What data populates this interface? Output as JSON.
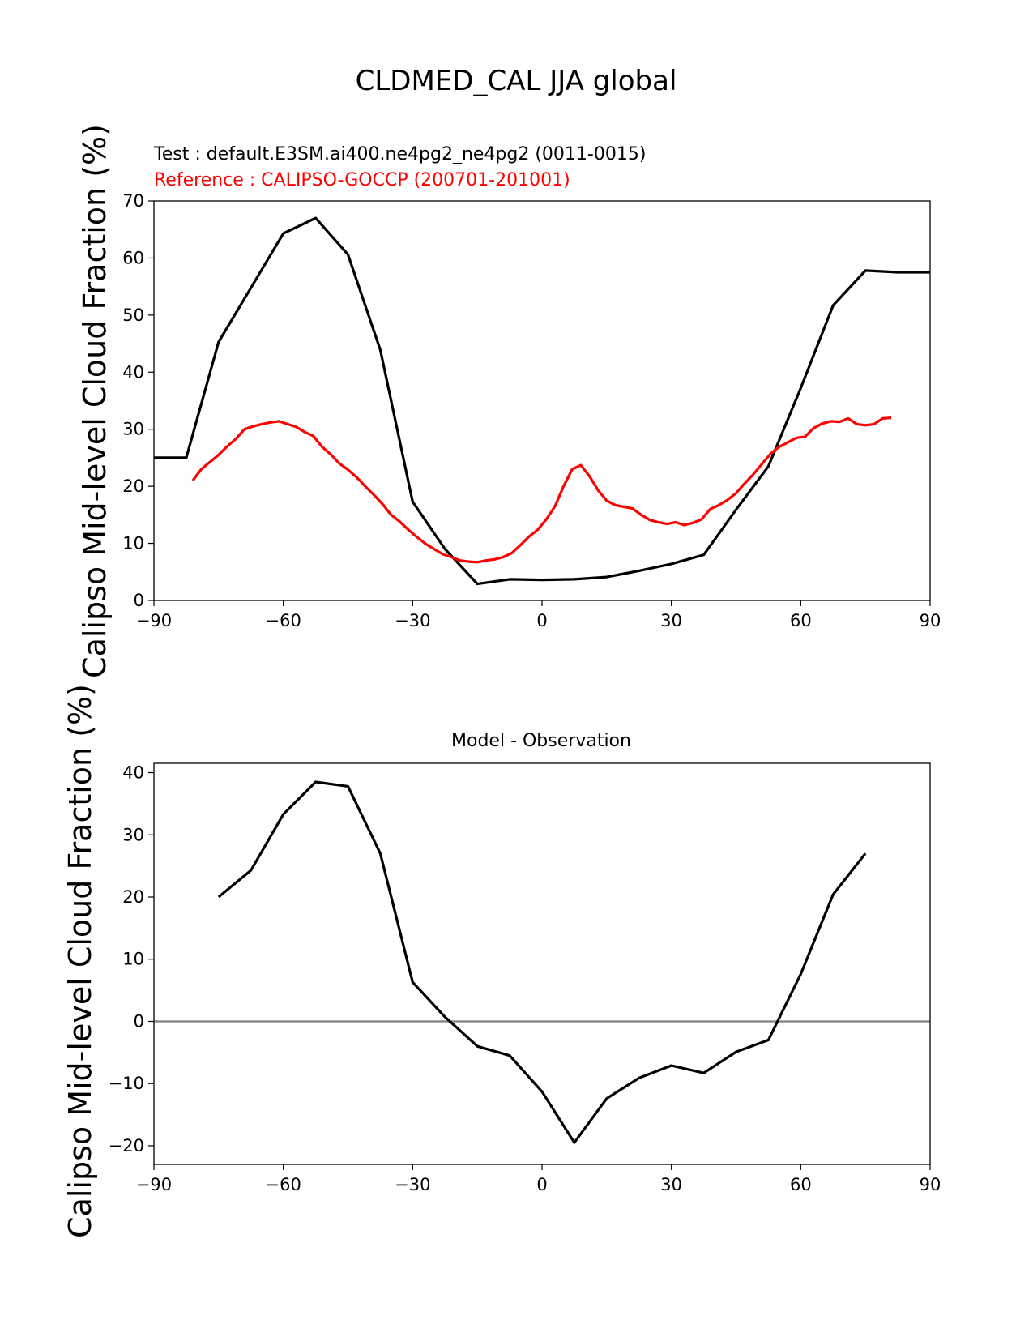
{
  "figure": {
    "title": "CLDMED_CAL JJA global",
    "colors": {
      "test": "#000000",
      "reference": "#ff0000",
      "zero_line": "#808080"
    }
  },
  "chart_data": [
    {
      "type": "line",
      "panel": "top",
      "title": "",
      "annotations": [
        {
          "text": "Test : default.E3SM.ai400.ne4pg2_ne4pg2 (0011-0015)",
          "color": "#000000"
        },
        {
          "text": "Reference : CALIPSO-GOCCP (200701-201001)",
          "color": "#ff0000"
        }
      ],
      "xlabel": "",
      "ylabel": "Calipso Mid-level Cloud Fraction (%)",
      "xlim": [
        -90,
        90
      ],
      "ylim": [
        0,
        70
      ],
      "xticks": [
        -90,
        -60,
        -30,
        0,
        30,
        60,
        90
      ],
      "xtick_labels": [
        "−90",
        "−60",
        "−30",
        "0",
        "30",
        "60",
        "90"
      ],
      "yticks": [
        0,
        10,
        20,
        30,
        40,
        50,
        60,
        70
      ],
      "ytick_labels": [
        "0",
        "10",
        "20",
        "30",
        "40",
        "50",
        "60",
        "70"
      ],
      "series": [
        {
          "name": "Test",
          "color": "#000000",
          "x": [
            -90,
            -82.5,
            -75,
            -67.5,
            -60,
            -52.5,
            -45,
            -37.5,
            -30,
            -22.5,
            -15,
            -7.5,
            0,
            7.5,
            15,
            22.5,
            30,
            37.5,
            45,
            52.5,
            60,
            67.5,
            75,
            82.5,
            90
          ],
          "y": [
            25,
            25,
            45.3,
            54.8,
            64.3,
            67,
            60.6,
            43.9,
            17.3,
            9,
            2.9,
            3.7,
            3.6,
            3.7,
            4.1,
            5.2,
            6.4,
            8,
            15.9,
            23.5,
            37.2,
            51.7,
            57.8,
            57.5,
            57.5
          ]
        },
        {
          "name": "Reference",
          "color": "#ff0000",
          "x": [
            -81,
            -79,
            -75,
            -73,
            -71,
            -69,
            -67,
            -65,
            -63,
            -61,
            -59,
            -57,
            -55,
            -53,
            -51,
            -49,
            -47,
            -45,
            -43,
            -41,
            -39,
            -37,
            -35,
            -33,
            -31,
            -29,
            -27,
            -25,
            -23,
            -21,
            -19,
            -17,
            -15,
            -13,
            -11,
            -9,
            -7,
            -5,
            -3,
            -1,
            1,
            3,
            5,
            7,
            9,
            11,
            13,
            15,
            17,
            19,
            21,
            23,
            25,
            27,
            29,
            31,
            33,
            35,
            37,
            39,
            41,
            43,
            45,
            47,
            49,
            51,
            53,
            55,
            57,
            59,
            61,
            63,
            65,
            67,
            69,
            71,
            73,
            75,
            77,
            79,
            81
          ],
          "y": [
            21,
            23,
            25.5,
            27,
            28.3,
            30,
            30.5,
            30.9,
            31.2,
            31.4,
            30.9,
            30.4,
            29.5,
            28.8,
            26.9,
            25.6,
            24,
            22.9,
            21.6,
            20,
            18.5,
            16.9,
            15,
            13.8,
            12.4,
            11.1,
            9.9,
            9,
            8.1,
            7.6,
            7,
            6.8,
            6.7,
            7,
            7.2,
            7.6,
            8.3,
            9.7,
            11.2,
            12.4,
            14.2,
            16.5,
            20,
            23,
            23.7,
            21.8,
            19.3,
            17.5,
            16.7,
            16.4,
            16.1,
            15,
            14.1,
            13.7,
            13.4,
            13.7,
            13.2,
            13.6,
            14.2,
            16,
            16.7,
            17.6,
            18.8,
            20.5,
            22.1,
            23.9,
            25.7,
            26.9,
            27.7,
            28.5,
            28.7,
            30.2,
            31,
            31.4,
            31.3,
            31.9,
            30.9,
            30.7,
            30.9,
            31.9,
            32
          ]
        }
      ]
    },
    {
      "type": "line",
      "panel": "bottom",
      "title": "Model - Observation",
      "xlabel": "",
      "ylabel": "Calipso Mid-level Cloud Fraction (%)",
      "xlim": [
        -90,
        90
      ],
      "ylim": [
        -23,
        41.5
      ],
      "xticks": [
        -90,
        -60,
        -30,
        0,
        30,
        60,
        90
      ],
      "xtick_labels": [
        "−90",
        "−60",
        "−30",
        "0",
        "30",
        "60",
        "90"
      ],
      "yticks": [
        -20,
        -10,
        0,
        10,
        20,
        30,
        40
      ],
      "ytick_labels": [
        "−20",
        "−10",
        "0",
        "10",
        "20",
        "30",
        "40"
      ],
      "reference_line": {
        "y": 0,
        "color": "#808080"
      },
      "series": [
        {
          "name": "Model - Observation",
          "color": "#000000",
          "x": [
            -75,
            -67.5,
            -60,
            -52.5,
            -45,
            -37.5,
            -30,
            -22.5,
            -15,
            -7.5,
            0,
            7.5,
            15,
            22.5,
            30,
            37.5,
            45,
            52.5,
            60,
            67.5,
            75
          ],
          "y": [
            20,
            24.3,
            33.3,
            38.5,
            37.8,
            27,
            6.3,
            0.7,
            -4,
            -5.5,
            -11.3,
            -19.5,
            -12.4,
            -9.1,
            -7.1,
            -8.3,
            -4.9,
            -3,
            7.6,
            20.4,
            27
          ]
        }
      ]
    }
  ]
}
